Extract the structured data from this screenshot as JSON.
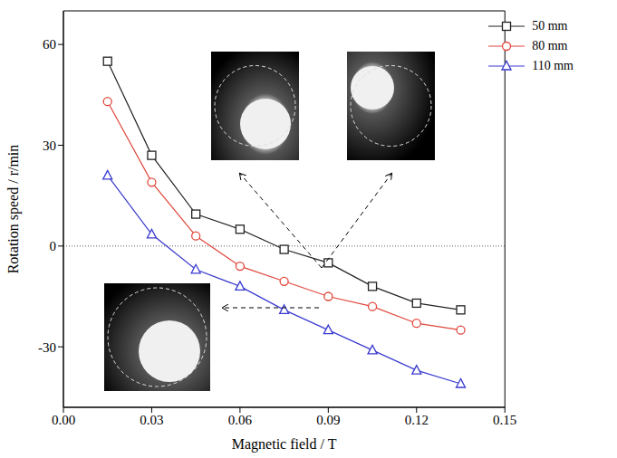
{
  "chart_data": {
    "type": "line",
    "x_label": "Magnetic field / T",
    "y_label": "Rotation speed / r/min",
    "x": [
      0.015,
      0.03,
      0.045,
      0.06,
      0.075,
      0.09,
      0.105,
      0.12,
      0.135
    ],
    "series": [
      {
        "name": "50 mm",
        "color": "#222222",
        "marker": "square",
        "values": [
          55,
          27,
          9.5,
          5,
          -1,
          -5,
          -12,
          -17,
          -19
        ]
      },
      {
        "name": "80 mm",
        "color": "#e0463c",
        "marker": "circle",
        "values": [
          43,
          19,
          3,
          -6,
          -10.5,
          -15,
          -18,
          -23,
          -25
        ]
      },
      {
        "name": "110 mm",
        "color": "#3a3ad0",
        "marker": "triangle",
        "values": [
          21,
          3.5,
          -7,
          -12,
          -19,
          -25,
          -31,
          -37,
          -41
        ]
      }
    ],
    "xlim": [
      0,
      0.15
    ],
    "xticks": [
      {
        "value": 0,
        "label": "0.00"
      },
      {
        "value": 0.03,
        "label": "0.03"
      },
      {
        "value": 0.06,
        "label": "0.06"
      },
      {
        "value": 0.09,
        "label": "0.09"
      },
      {
        "value": 0.12,
        "label": "0.12"
      },
      {
        "value": 0.15,
        "label": "0.15"
      }
    ],
    "ylim": [
      -48,
      70
    ],
    "yticks": [
      -30,
      0,
      30,
      60
    ],
    "reference_lines": [
      {
        "y": 0
      }
    ],
    "grid": false,
    "legend": "upper right"
  }
}
